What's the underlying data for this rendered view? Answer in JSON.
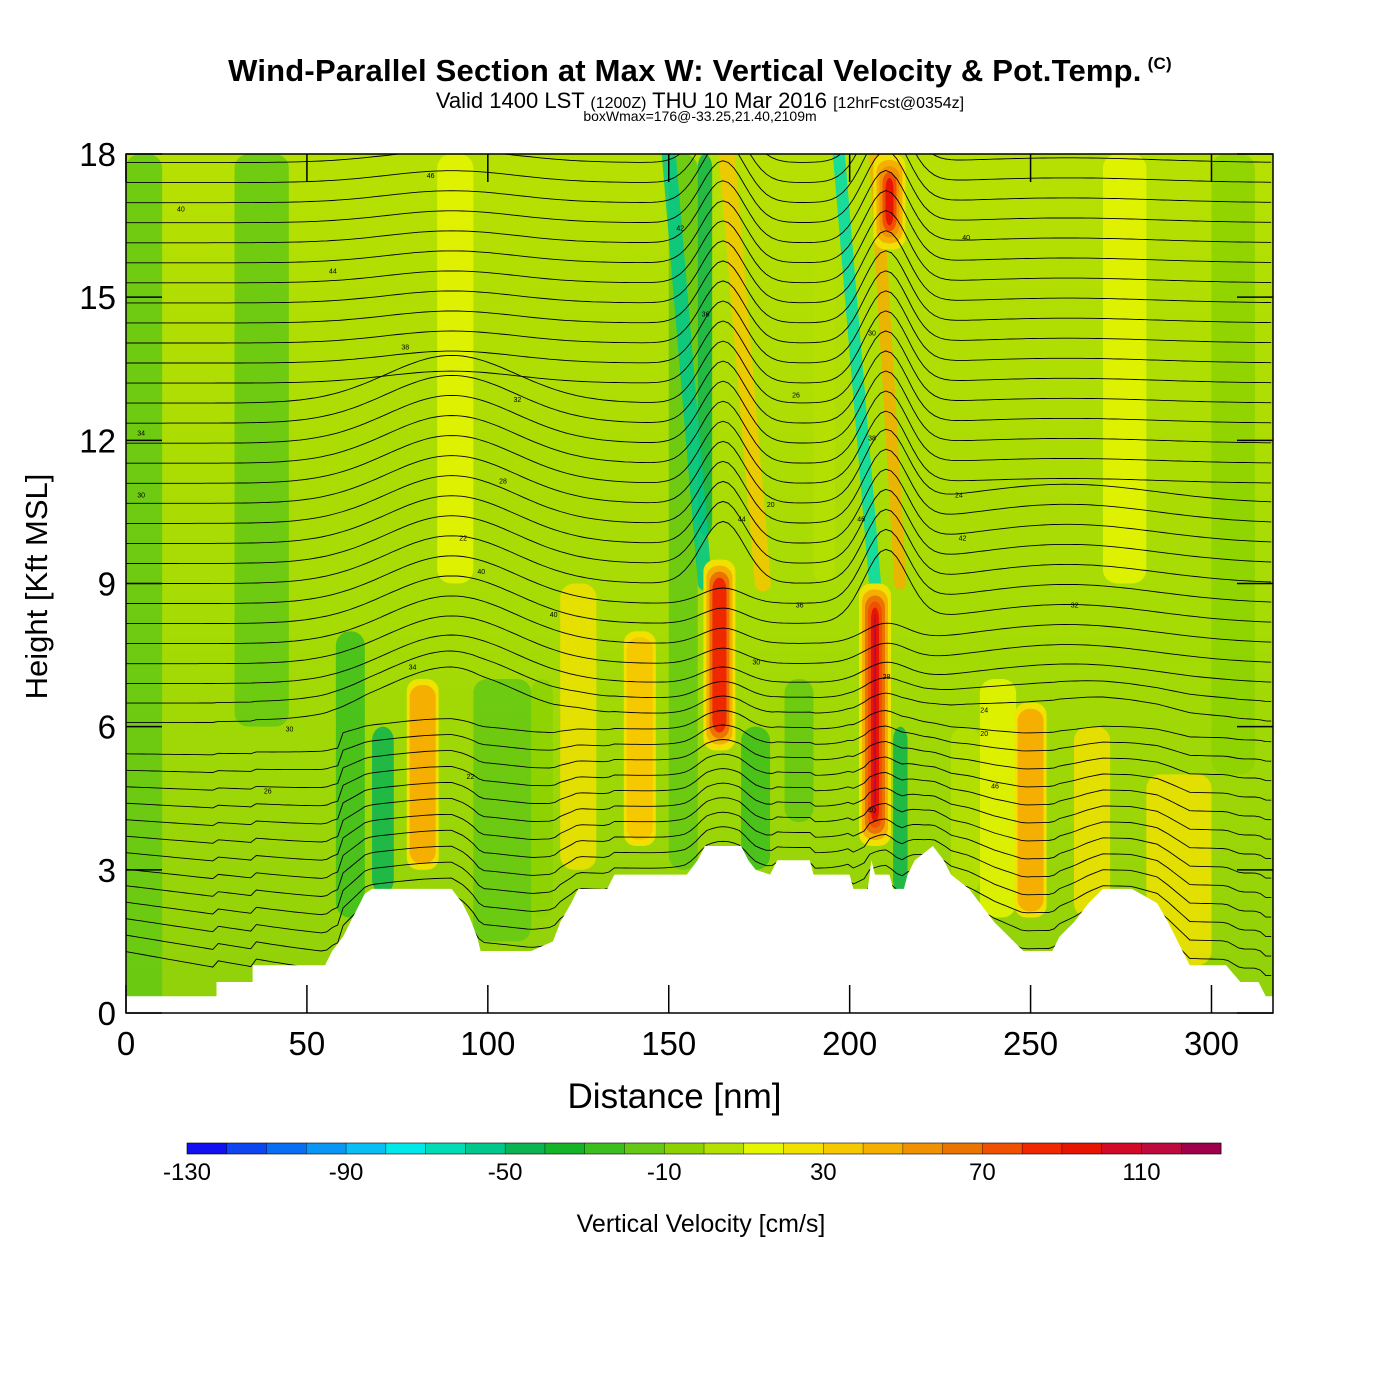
{
  "header": {
    "title": "Wind-Parallel Section at Max W: Vertical Velocity & Pot.Temp.",
    "copyright": "(C)",
    "valid_main": "Valid 1400 LST",
    "valid_utc": "(1200Z)",
    "valid_date": "THU 10 Mar 2016",
    "forecast": "[12hrFcst@0354z]",
    "box_info": "boxWmax=176@-33.25,21.40,2109m"
  },
  "chart_data": {
    "type": "heatmap",
    "title": "Wind-Parallel Section at Max W: Vertical Velocity & Pot.Temp.",
    "xlabel": "Distance [nm]",
    "ylabel": "Height [Kft MSL]",
    "xlim": [
      0,
      317
    ],
    "ylim": [
      0,
      18
    ],
    "xticks": [
      0,
      50,
      100,
      150,
      200,
      250,
      300
    ],
    "yticks": [
      0,
      3,
      6,
      9,
      12,
      15,
      18
    ],
    "colorbar": {
      "label": "Vertical Velocity [cm/s]",
      "min": -130,
      "max": 130,
      "step": 10,
      "tick_labels": [
        "-130",
        "-90",
        "-50",
        "-10",
        "30",
        "70",
        "110"
      ],
      "colors": [
        "#1010f0",
        "#0d46f0",
        "#0a6ef5",
        "#0a96f5",
        "#0abef5",
        "#00e8e8",
        "#00dcb4",
        "#00c88c",
        "#0ab450",
        "#14b428",
        "#3cbe1e",
        "#64c814",
        "#8cd200",
        "#b4e100",
        "#e6f500",
        "#f0e100",
        "#f5c800",
        "#f5af00",
        "#f09100",
        "#eb7300",
        "#f05000",
        "#f02800",
        "#e61400",
        "#d20a28",
        "#be0a3c",
        "#a0004b"
      ]
    },
    "surface_profile": [
      [
        0,
        0.35
      ],
      [
        25,
        0.35
      ],
      [
        25,
        0.65
      ],
      [
        35,
        0.65
      ],
      [
        35,
        1
      ],
      [
        55,
        1
      ],
      [
        57,
        1.3
      ],
      [
        60,
        1.6
      ],
      [
        62,
        1.9
      ],
      [
        64,
        2.2
      ],
      [
        66,
        2.5
      ],
      [
        68,
        2.6
      ],
      [
        78,
        2.6
      ],
      [
        82,
        2.6
      ],
      [
        90,
        2.6
      ],
      [
        93,
        2.3
      ],
      [
        95,
        2.0
      ],
      [
        97,
        1.6
      ],
      [
        98,
        1.3
      ],
      [
        112,
        1.3
      ],
      [
        118,
        1.5
      ],
      [
        120,
        1.9
      ],
      [
        123,
        2.3
      ],
      [
        125,
        2.6
      ],
      [
        133,
        2.6
      ],
      [
        135,
        2.9
      ],
      [
        155,
        2.9
      ],
      [
        158,
        3.2
      ],
      [
        160,
        3.5
      ],
      [
        170,
        3.5
      ],
      [
        172,
        3.2
      ],
      [
        174,
        3.0
      ],
      [
        178,
        2.9
      ],
      [
        180,
        3.2
      ],
      [
        189,
        3.2
      ],
      [
        190,
        2.9
      ],
      [
        200,
        2.9
      ],
      [
        201,
        2.6
      ],
      [
        205,
        2.6
      ],
      [
        206,
        3.2
      ],
      [
        207,
        2.9
      ],
      [
        211,
        2.9
      ],
      [
        212,
        2.6
      ],
      [
        215,
        2.6
      ],
      [
        216,
        2.9
      ],
      [
        218,
        3.2
      ],
      [
        223,
        3.5
      ],
      [
        226,
        3.2
      ],
      [
        228,
        2.9
      ],
      [
        233,
        2.6
      ],
      [
        240,
        1.9
      ],
      [
        244,
        1.6
      ],
      [
        248,
        1.3
      ],
      [
        256,
        1.3
      ],
      [
        258,
        1.6
      ],
      [
        262,
        1.9
      ],
      [
        266,
        2.3
      ],
      [
        270,
        2.6
      ],
      [
        278,
        2.6
      ],
      [
        285,
        2.3
      ],
      [
        288,
        1.9
      ],
      [
        292,
        1.3
      ],
      [
        294,
        1.0
      ],
      [
        304,
        1.0
      ],
      [
        308,
        0.65
      ],
      [
        313,
        0.65
      ],
      [
        315,
        0.35
      ],
      [
        317,
        0.35
      ]
    ],
    "updraft_features": [
      {
        "x": 164,
        "z_base": 5.5,
        "z_top": 9.5,
        "w": 80
      },
      {
        "x": 207,
        "z_base": 3.5,
        "z_top": 9.0,
        "w": 110
      },
      {
        "x": 211,
        "z_base": 16.0,
        "z_top": 18.0,
        "w": 90
      },
      {
        "x": 82,
        "z_base": 3.0,
        "z_top": 7.0,
        "w": 40
      },
      {
        "x": 142,
        "z_base": 3.5,
        "z_top": 8.0,
        "w": 30
      },
      {
        "x": 250,
        "z_base": 2.0,
        "z_top": 6.5,
        "w": 40
      }
    ],
    "isentrope_labels": [
      "40",
      "46",
      "44",
      "42",
      "40",
      "38",
      "36",
      "34",
      "32",
      "30",
      "30",
      "28",
      "26",
      "24",
      "22",
      "20"
    ]
  }
}
